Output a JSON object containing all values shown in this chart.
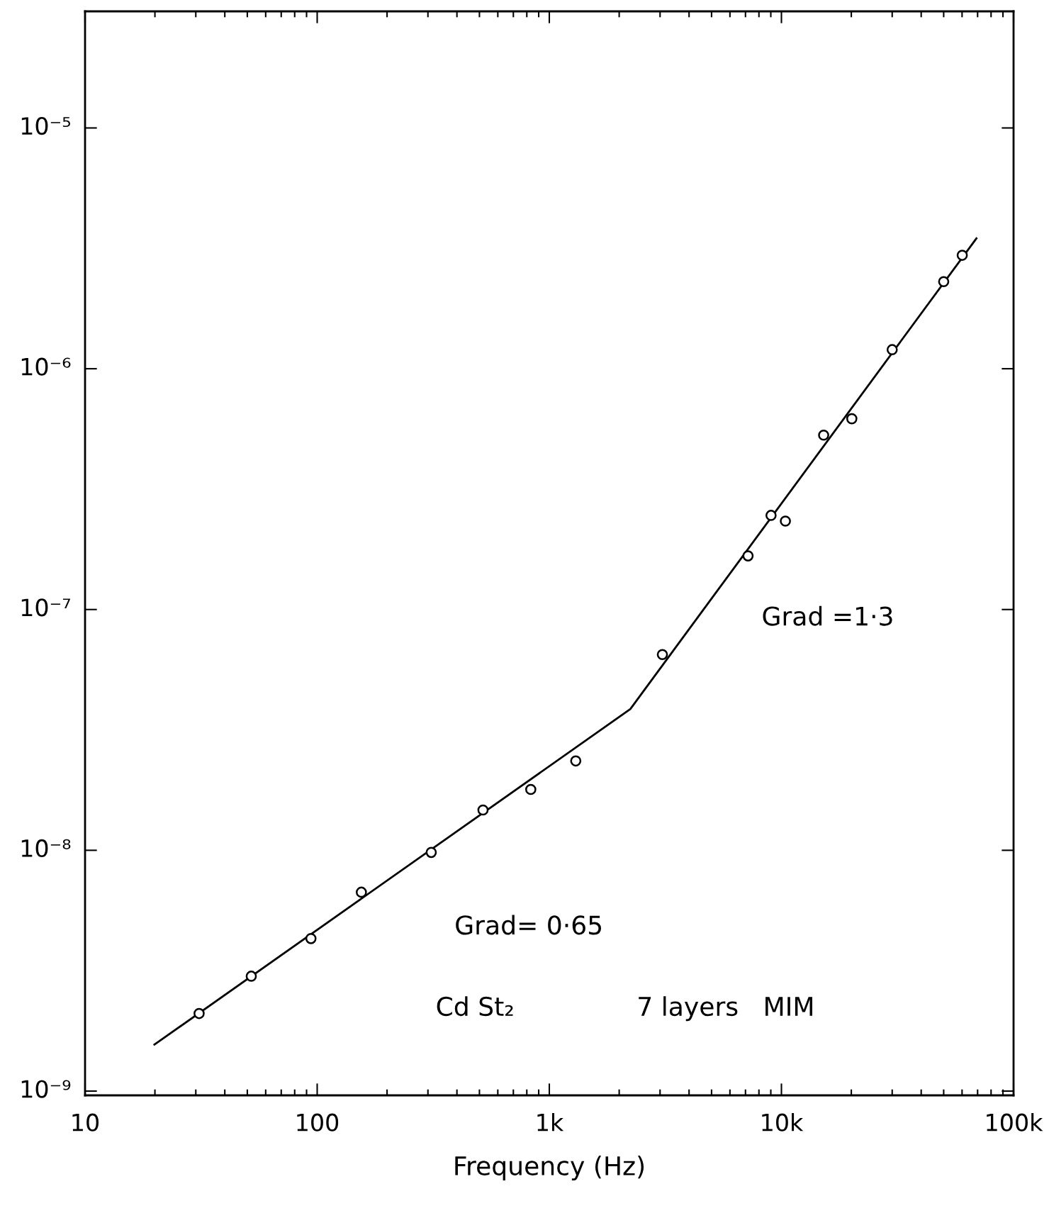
{
  "chart_data": {
    "type": "scatter",
    "xlabel": "Frequency (Hz)",
    "log": "xy",
    "marker": "circle",
    "grid": false,
    "legend": false,
    "xlim": [
      10,
      100000
    ],
    "xticks": [
      10,
      100,
      {
        "value": 1000,
        "label": "1k"
      },
      {
        "value": 10000,
        "label": "10k"
      },
      {
        "value": 100000,
        "label": "100k"
      }
    ],
    "ylim": [
      9.6e-10,
      3.05e-05
    ],
    "yticks": [
      {
        "value": 1e-09,
        "label": "10⁻⁹"
      },
      {
        "value": 1e-08,
        "label": "10⁻⁸"
      },
      {
        "value": 1e-07,
        "label": "10⁻⁷"
      },
      {
        "value": 1e-06,
        "label": "10⁻⁶"
      },
      {
        "value": 1e-05,
        "label": "10⁻⁵"
      }
    ],
    "series": [
      {
        "type": "scatter",
        "color": "#000000",
        "x": [
          31,
          52,
          94,
          155,
          310,
          518,
          832,
          1300,
          3070,
          7180,
          9020,
          10400,
          15200,
          20100,
          30000,
          50000,
          60100
        ],
        "values": [
          2.1e-09,
          3e-09,
          4.3e-09,
          6.7e-09,
          9.8e-09,
          1.47e-08,
          1.79e-08,
          2.35e-08,
          6.5e-08,
          1.67e-07,
          2.46e-07,
          2.33e-07,
          5.3e-07,
          6.2e-07,
          1.2e-06,
          2.3e-06,
          2.96e-06
        ]
      },
      {
        "type": "line",
        "color": "#000000",
        "line_style": "solid",
        "marker": "none",
        "x": [
          19.9,
          2234,
          69200
        ],
        "values": [
          1.56e-09,
          3.86e-08,
          3.48e-06
        ]
      }
    ],
    "annotations": [
      "Grad =1·3",
      "Grad= 0·65",
      "Cd St₂",
      "7 layers   MIM"
    ]
  }
}
